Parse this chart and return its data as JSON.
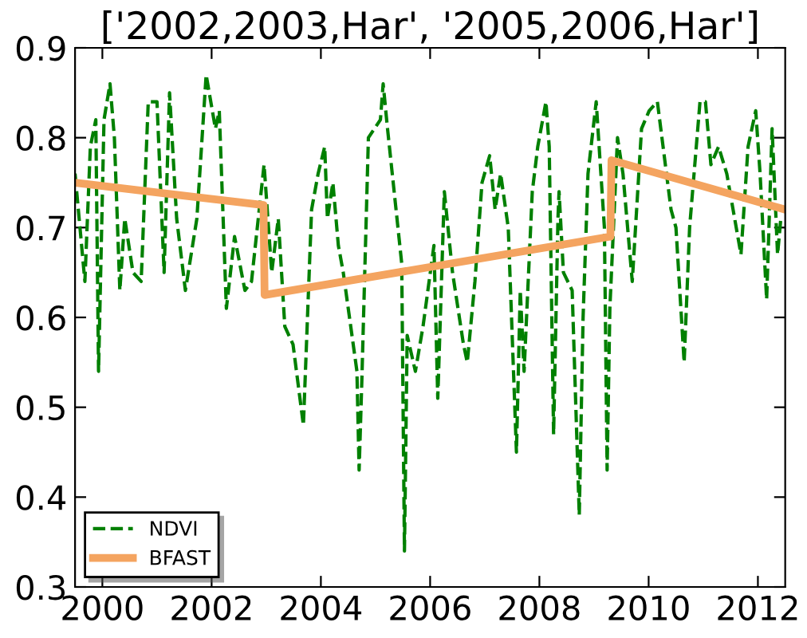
{
  "chart_data": {
    "type": "line",
    "title": "['2002,2003,Har', '2005,2006,Har']",
    "xlim": [
      1999.5,
      2012.5
    ],
    "xticks": [
      2000,
      2002,
      2004,
      2006,
      2008,
      2010,
      2012
    ],
    "ylim": [
      0.3,
      0.9
    ],
    "yticks": [
      0.3,
      0.4,
      0.5,
      0.6,
      0.7,
      0.8,
      0.9
    ],
    "grid": false,
    "legend": "bottom left",
    "series": [
      {
        "name": "NDVI",
        "color": "#008000",
        "line_style": "dashed",
        "x": [
          1999.5,
          1999.59,
          1999.68,
          1999.78,
          1999.88,
          1999.93,
          2000.03,
          2000.14,
          2000.22,
          2000.32,
          2000.41,
          2000.56,
          2000.71,
          2000.84,
          2001.0,
          2001.13,
          2001.23,
          2001.36,
          2001.52,
          2001.73,
          2001.9,
          2002.07,
          2002.14,
          2002.27,
          2002.42,
          2002.61,
          2002.73,
          2002.96,
          2003.1,
          2003.22,
          2003.34,
          2003.49,
          2003.68,
          2003.83,
          2003.95,
          2004.07,
          2004.12,
          2004.22,
          2004.32,
          2004.41,
          2004.66,
          2004.7,
          2004.75,
          2004.87,
          2005.09,
          2005.14,
          2005.22,
          2005.48,
          2005.53,
          2005.58,
          2005.73,
          2005.87,
          2006.07,
          2006.14,
          2006.26,
          2006.41,
          2006.61,
          2006.68,
          2006.82,
          2006.95,
          2007.09,
          2007.19,
          2007.29,
          2007.43,
          2007.58,
          2007.65,
          2007.72,
          2007.87,
          2007.97,
          2008.12,
          2008.18,
          2008.26,
          2008.34,
          2008.36,
          2008.44,
          2008.6,
          2008.73,
          2008.8,
          2008.89,
          2009.04,
          2009.19,
          2009.24,
          2009.29,
          2009.43,
          2009.53,
          2009.7,
          2009.87,
          2010.01,
          2010.16,
          2010.41,
          2010.5,
          2010.65,
          2010.75,
          2010.94,
          2011.04,
          2011.14,
          2011.28,
          2011.43,
          2011.69,
          2011.82,
          2011.96,
          2012.04,
          2012.16,
          2012.26,
          2012.36,
          2012.42
        ],
        "values": [
          0.76,
          0.7,
          0.64,
          0.79,
          0.82,
          0.54,
          0.82,
          0.86,
          0.8,
          0.63,
          0.71,
          0.65,
          0.64,
          0.84,
          0.84,
          0.65,
          0.85,
          0.71,
          0.63,
          0.71,
          0.87,
          0.81,
          0.83,
          0.61,
          0.69,
          0.63,
          0.64,
          0.77,
          0.65,
          0.71,
          0.59,
          0.57,
          0.48,
          0.72,
          0.76,
          0.79,
          0.71,
          0.75,
          0.68,
          0.65,
          0.54,
          0.43,
          0.53,
          0.8,
          0.82,
          0.86,
          0.81,
          0.66,
          0.34,
          0.58,
          0.54,
          0.59,
          0.68,
          0.51,
          0.74,
          0.65,
          0.57,
          0.55,
          0.64,
          0.75,
          0.78,
          0.72,
          0.76,
          0.7,
          0.45,
          0.63,
          0.54,
          0.74,
          0.79,
          0.84,
          0.79,
          0.47,
          0.71,
          0.74,
          0.65,
          0.63,
          0.38,
          0.6,
          0.76,
          0.84,
          0.7,
          0.43,
          0.61,
          0.8,
          0.76,
          0.64,
          0.81,
          0.83,
          0.84,
          0.72,
          0.7,
          0.55,
          0.7,
          0.84,
          0.84,
          0.77,
          0.79,
          0.76,
          0.67,
          0.79,
          0.83,
          0.76,
          0.62,
          0.81,
          0.67,
          0.71
        ]
      },
      {
        "name": "BFAST",
        "color": "#f4a460",
        "line_style": "solid",
        "x": [
          1999.5,
          2002.95,
          2002.97,
          2009.3,
          2009.32,
          2012.5
        ],
        "values": [
          0.75,
          0.725,
          0.625,
          0.69,
          0.775,
          0.72
        ]
      }
    ]
  }
}
